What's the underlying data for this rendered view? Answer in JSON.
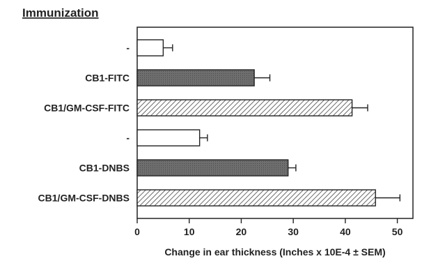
{
  "chart_data": {
    "type": "bar",
    "orientation": "horizontal",
    "title": "Immunization",
    "xlabel": "Change in ear thickness (Inches x 10E-4 ± SEM)",
    "ylabel": "",
    "xlim": [
      0,
      53
    ],
    "xticks": [
      0,
      10,
      20,
      30,
      40,
      50
    ],
    "xtick_labels": [
      "0",
      "10",
      "20",
      "30",
      "40",
      "50"
    ],
    "grid": false,
    "legend": "none",
    "categories": [
      "-",
      "CB1-FITC",
      "CB1/GM-CSF-FITC",
      "-",
      "CB1-DNBS",
      "CB1/GM-CSF-DNBS"
    ],
    "values": [
      5,
      22.5,
      41.3,
      12,
      29,
      45.8
    ],
    "errors": [
      1.8,
      3.0,
      3.0,
      1.5,
      1.5,
      4.7
    ],
    "fills": [
      "open",
      "dark",
      "hatched",
      "open",
      "dark",
      "hatched"
    ]
  }
}
